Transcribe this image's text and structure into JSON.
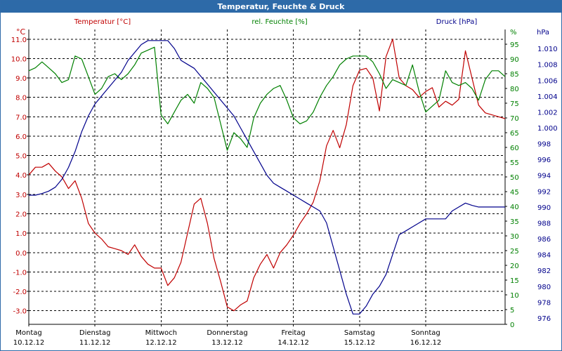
{
  "window": {
    "title": "Temperatur, Feuchte & Druck"
  },
  "colors": {
    "temperature": "#c00000",
    "humidity": "#008000",
    "pressure": "#00008b",
    "grid": "#000000",
    "axis": "#000000"
  },
  "chart_data": {
    "type": "line",
    "title": "Temperatur, Feuchte & Druck",
    "x": {
      "unit": "days",
      "range": [
        0,
        7.2
      ],
      "ticks": [
        {
          "pos": 0,
          "day": "Montag",
          "date": "10.12.12"
        },
        {
          "pos": 1,
          "day": "Dienstag",
          "date": "11.12.12"
        },
        {
          "pos": 2,
          "day": "Mittwoch",
          "date": "12.12.12"
        },
        {
          "pos": 3,
          "day": "Donnerstag",
          "date": "13.12.12"
        },
        {
          "pos": 4,
          "day": "Freitag",
          "date": "14.12.12"
        },
        {
          "pos": 5,
          "day": "Samstag",
          "date": "15.12.12"
        },
        {
          "pos": 6,
          "day": "Sonntag",
          "date": "16.12.12"
        }
      ]
    },
    "axes": {
      "temperature": {
        "label": "Temperatur [°C]",
        "unit": "°C",
        "range": [
          -3.7,
          11.5
        ],
        "ticks": [
          11.0,
          10.0,
          9.0,
          8.0,
          7.0,
          6.0,
          5.0,
          4.0,
          3.0,
          2.0,
          1.0,
          0.0,
          -1.0,
          -2.0,
          -3.0
        ],
        "tick_labels": [
          "11.0",
          "10.0",
          "9.0",
          "8.0",
          "7.0",
          "6.0",
          "5.0",
          "4.0",
          "3.0",
          "2.0",
          "1.0",
          "0.0",
          "-1.0",
          "-2.0",
          "-3.0"
        ]
      },
      "humidity": {
        "label": "rel. Feuchte [%]",
        "unit": "%",
        "range": [
          0,
          100
        ],
        "ticks": [
          0,
          5,
          10,
          15,
          20,
          25,
          30,
          35,
          40,
          45,
          50,
          55,
          60,
          65,
          70,
          75,
          80,
          85,
          90,
          95
        ],
        "tick_labels": [
          "0",
          "5",
          "10",
          "15",
          "20",
          "25",
          "30",
          "35",
          "40",
          "45",
          "50",
          "55",
          "60",
          "65",
          "70",
          "75",
          "80",
          "85",
          "90",
          "95"
        ]
      },
      "pressure": {
        "label": "hPa",
        "series_label": "Druck [hPa]",
        "unit": "hPa",
        "range": [
          975.2,
          1012.4
        ],
        "ticks": [
          976,
          978,
          980,
          982,
          984,
          986,
          988,
          990,
          992,
          994,
          996,
          998,
          1000,
          1002,
          1004,
          1006,
          1008,
          1010
        ],
        "tick_labels": [
          "976",
          "978",
          "980",
          "982",
          "984",
          "986",
          "988",
          "990",
          "992",
          "994",
          "996",
          "998",
          "1.000",
          "1.002",
          "1.004",
          "1.006",
          "1.008",
          "1.010"
        ]
      }
    },
    "series": [
      {
        "name": "Temperatur [°C]",
        "axis": "temperature",
        "x": [
          0,
          0.1,
          0.2,
          0.3,
          0.4,
          0.5,
          0.6,
          0.7,
          0.8,
          0.9,
          1.0,
          1.1,
          1.2,
          1.3,
          1.4,
          1.5,
          1.6,
          1.7,
          1.8,
          1.9,
          2.0,
          2.1,
          2.2,
          2.3,
          2.4,
          2.5,
          2.6,
          2.7,
          2.8,
          2.9,
          3.0,
          3.1,
          3.2,
          3.3,
          3.4,
          3.5,
          3.6,
          3.7,
          3.8,
          3.9,
          4.0,
          4.1,
          4.2,
          4.3,
          4.4,
          4.5,
          4.6,
          4.7,
          4.8,
          4.9,
          5.0,
          5.1,
          5.2,
          5.3,
          5.4,
          5.5,
          5.6,
          5.7,
          5.8,
          5.9,
          6.0,
          6.1,
          6.2,
          6.3,
          6.4,
          6.5,
          6.6,
          6.7,
          6.8,
          6.9,
          7.0,
          7.1,
          7.2
        ],
        "values": [
          4.0,
          4.4,
          4.4,
          4.6,
          4.2,
          3.9,
          3.3,
          3.7,
          2.8,
          1.5,
          1.0,
          0.7,
          0.3,
          0.2,
          0.1,
          -0.1,
          0.4,
          -0.2,
          -0.6,
          -0.8,
          -0.8,
          -1.7,
          -1.3,
          -0.5,
          1.0,
          2.5,
          2.8,
          1.5,
          -0.3,
          -1.5,
          -2.8,
          -3.0,
          -2.7,
          -2.5,
          -1.3,
          -0.6,
          -0.1,
          -0.8,
          0.0,
          0.4,
          0.9,
          1.5,
          2.0,
          2.6,
          3.7,
          5.5,
          6.3,
          5.4,
          6.6,
          8.6,
          9.4,
          9.5,
          9.0,
          7.3,
          10.1,
          11.0,
          9.0,
          8.6,
          8.4,
          8.0,
          8.3,
          8.5,
          7.5,
          7.8,
          7.6,
          7.9,
          10.4,
          9.0,
          7.6,
          7.2,
          7.1,
          7.0,
          6.9
        ]
      },
      {
        "name": "rel. Feuchte [%]",
        "axis": "humidity",
        "x": [
          0,
          0.1,
          0.2,
          0.3,
          0.4,
          0.5,
          0.6,
          0.7,
          0.8,
          0.9,
          1.0,
          1.1,
          1.2,
          1.3,
          1.4,
          1.5,
          1.6,
          1.7,
          1.8,
          1.9,
          2.0,
          2.1,
          2.2,
          2.3,
          2.4,
          2.5,
          2.6,
          2.7,
          2.8,
          2.9,
          3.0,
          3.1,
          3.2,
          3.3,
          3.4,
          3.5,
          3.6,
          3.7,
          3.8,
          3.9,
          4.0,
          4.1,
          4.2,
          4.3,
          4.4,
          4.5,
          4.6,
          4.7,
          4.8,
          4.9,
          5.0,
          5.1,
          5.2,
          5.3,
          5.4,
          5.5,
          5.6,
          5.7,
          5.8,
          5.9,
          6.0,
          6.1,
          6.2,
          6.3,
          6.4,
          6.5,
          6.6,
          6.7,
          6.8,
          6.9,
          7.0,
          7.1,
          7.2
        ],
        "values": [
          86,
          87,
          89,
          87,
          85,
          82,
          83,
          91,
          90,
          84,
          78,
          80,
          84,
          85,
          83,
          85,
          88,
          92,
          93,
          94,
          71,
          68,
          72,
          76,
          78,
          75,
          82,
          80,
          77,
          68,
          59,
          65,
          63,
          60,
          70,
          75,
          78,
          80,
          81,
          76,
          70,
          68,
          69,
          72,
          77,
          81,
          84,
          88,
          90,
          91,
          91,
          91,
          89,
          85,
          80,
          83,
          82,
          81,
          88,
          79,
          72,
          74,
          76,
          86,
          82,
          81,
          82,
          80,
          76,
          83,
          86,
          86,
          84
        ]
      },
      {
        "name": "Druck [hPa]",
        "axis": "pressure",
        "x": [
          0,
          0.1,
          0.2,
          0.3,
          0.4,
          0.5,
          0.6,
          0.7,
          0.8,
          0.9,
          1.0,
          1.1,
          1.2,
          1.3,
          1.4,
          1.5,
          1.6,
          1.7,
          1.8,
          1.9,
          2.0,
          2.1,
          2.2,
          2.3,
          2.4,
          2.5,
          2.6,
          2.7,
          2.8,
          2.9,
          3.0,
          3.1,
          3.2,
          3.3,
          3.4,
          3.5,
          3.6,
          3.7,
          3.8,
          3.9,
          4.0,
          4.1,
          4.2,
          4.3,
          4.4,
          4.5,
          4.6,
          4.7,
          4.8,
          4.9,
          5.0,
          5.1,
          5.2,
          5.3,
          5.4,
          5.5,
          5.6,
          5.7,
          5.8,
          5.9,
          6.0,
          6.1,
          6.2,
          6.3,
          6.4,
          6.5,
          6.6,
          6.7,
          6.8,
          6.9,
          7.0,
          7.1,
          7.2
        ],
        "values": [
          991.5,
          991.5,
          991.7,
          992.0,
          992.5,
          993.5,
          995.0,
          997.0,
          999.5,
          1001.5,
          1003.0,
          1004.0,
          1005.0,
          1006.0,
          1007.0,
          1008.5,
          1009.5,
          1010.5,
          1011.0,
          1011.0,
          1011.0,
          1011.0,
          1010.0,
          1008.5,
          1008.0,
          1007.5,
          1006.5,
          1005.5,
          1004.5,
          1003.5,
          1002.5,
          1001.5,
          1000.0,
          998.5,
          997.0,
          995.5,
          994.0,
          993.0,
          992.5,
          992.0,
          991.5,
          991.0,
          990.5,
          990.0,
          989.5,
          988.0,
          985.0,
          982.0,
          979.0,
          976.5,
          976.5,
          977.5,
          979.0,
          980.0,
          981.5,
          984.0,
          986.5,
          987.0,
          987.5,
          988.0,
          988.5,
          988.5,
          988.5,
          988.5,
          989.5,
          990.0,
          990.5,
          990.2,
          990.0,
          990.0,
          990.0,
          990.0,
          990.0
        ]
      }
    ]
  }
}
